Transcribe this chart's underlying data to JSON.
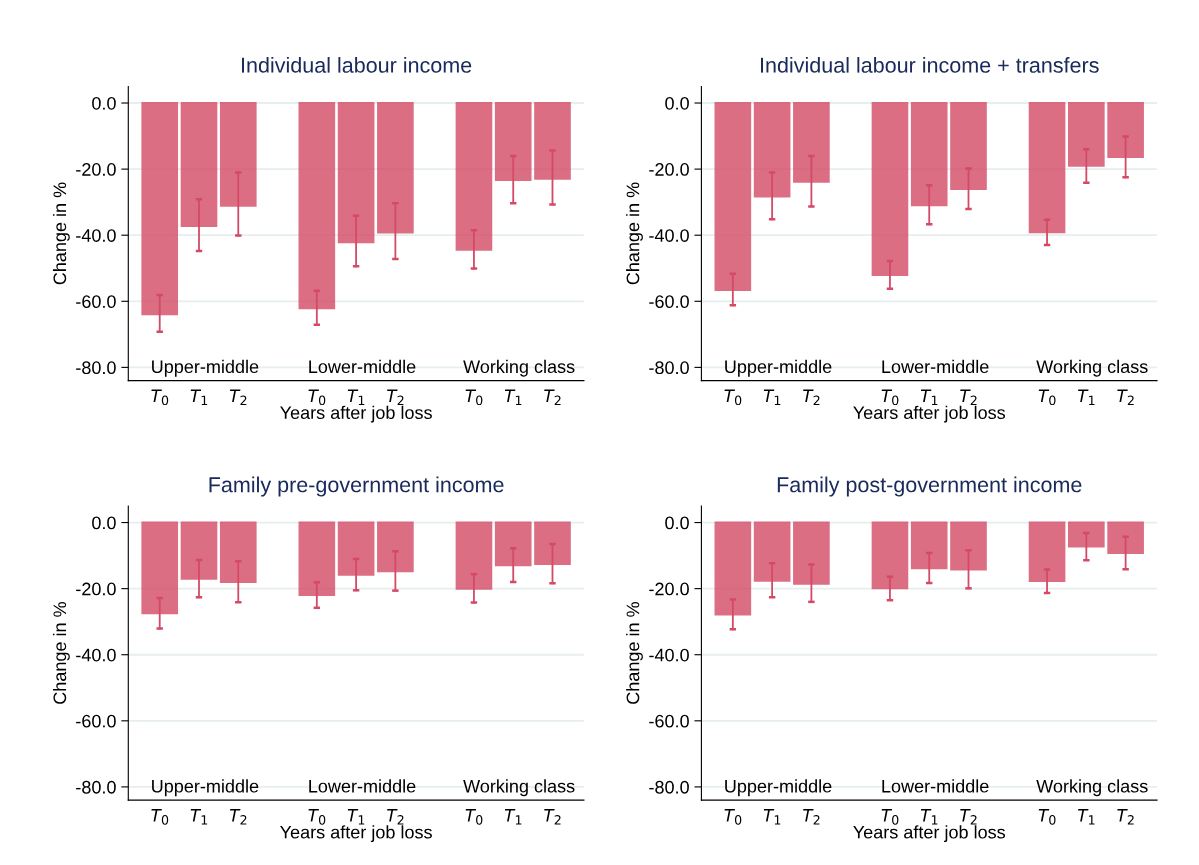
{
  "chart_data": [
    {
      "type": "bar",
      "title": "Individual labour income",
      "xlabel": "Years after job loss",
      "ylabel": "Change in %",
      "categories": [
        "T$_{0}$",
        "T$_{1}$",
        "T$_{2}$",
        null,
        "T$_{0}$",
        "T$_{1}$",
        "T$_{2}$",
        null,
        "T$_{0}$",
        "T$_{1}$",
        "T$_{2}$"
      ],
      "series": [
        {
          "color": "#d44a66",
          "values": [
            -63.9,
            -37.2,
            -31.1,
            null,
            -62.1,
            -42.1,
            -39.2,
            null,
            -44.4,
            -23.3,
            -22.9
          ],
          "errors": [
            [
              -69.2,
              -58.1
            ],
            [
              -44.8,
              -29.1
            ],
            [
              -40.1,
              -21.0
            ],
            null,
            [
              -67.1,
              -56.8
            ],
            [
              -49.4,
              -34.1
            ],
            [
              -47.2,
              -30.3
            ],
            null,
            [
              -50.1,
              -38.5
            ],
            [
              -30.3,
              -16.0
            ],
            [
              -30.7,
              -14.4
            ]
          ]
        }
      ],
      "annotations": [
        "Upper-middle",
        "Lower-middle",
        "Working class"
      ],
      "ylim": [
        -84,
        5
      ],
      "yticks": [
        {
          "value": 0,
          "label": "0.0"
        },
        {
          "value": -20,
          "label": "-20.0"
        },
        {
          "value": -40,
          "label": "-40.0"
        },
        {
          "value": -60,
          "label": "-60.0"
        },
        {
          "value": -80,
          "label": "-80.0"
        }
      ],
      "grid": "y"
    },
    {
      "type": "bar",
      "title": "Individual labour income + transfers",
      "xlabel": "Years after job loss",
      "ylabel": "Change in %",
      "categories": [
        "T$_{0}$",
        "T$_{1}$",
        "T$_{2}$",
        null,
        "T$_{0}$",
        "T$_{1}$",
        "T$_{2}$",
        null,
        "T$_{0}$",
        "T$_{1}$",
        "T$_{2}$"
      ],
      "series": [
        {
          "color": "#d44a66",
          "values": [
            -56.6,
            -28.3,
            -23.8,
            null,
            -52.0,
            -30.9,
            -26.0,
            null,
            -39.1,
            -19.0,
            -16.3
          ],
          "errors": [
            [
              -61.2,
              -51.7
            ],
            [
              -35.2,
              -21.0
            ],
            [
              -31.3,
              -16.0
            ],
            null,
            [
              -56.2,
              -47.8
            ],
            [
              -36.7,
              -24.9
            ],
            [
              -32.1,
              -19.8
            ],
            null,
            [
              -43.0,
              -35.3
            ],
            [
              -24.1,
              -14.0
            ],
            [
              -22.5,
              -10.1
            ]
          ]
        }
      ],
      "annotations": [
        "Upper-middle",
        "Lower-middle",
        "Working class"
      ],
      "ylim": [
        -84,
        5
      ],
      "yticks": [
        {
          "value": 0,
          "label": "0.0"
        },
        {
          "value": -20,
          "label": "-20.0"
        },
        {
          "value": -40,
          "label": "-40.0"
        },
        {
          "value": -60,
          "label": "-60.0"
        },
        {
          "value": -80,
          "label": "-80.0"
        }
      ],
      "grid": "y"
    },
    {
      "type": "bar",
      "title": "Family pre-government income",
      "xlabel": "Years after job loss",
      "ylabel": "Change in %",
      "categories": [
        "T$_{0}$",
        "T$_{1}$",
        "T$_{2}$",
        null,
        "T$_{0}$",
        "T$_{1}$",
        "T$_{2}$",
        null,
        "T$_{0}$",
        "T$_{1}$",
        "T$_{2}$"
      ],
      "series": [
        {
          "color": "#d44a66",
          "values": [
            -27.4,
            -17.0,
            -18.0,
            null,
            -21.9,
            -15.8,
            -14.7,
            null,
            -20.0,
            -12.9,
            -12.5
          ],
          "errors": [
            [
              -32.1,
              -22.8
            ],
            [
              -22.6,
              -11.3
            ],
            [
              -24.1,
              -11.7
            ],
            null,
            [
              -25.8,
              -18.1
            ],
            [
              -20.5,
              -11.0
            ],
            [
              -20.6,
              -8.7
            ],
            null,
            [
              -24.2,
              -15.6
            ],
            [
              -18.0,
              -7.8
            ],
            [
              -18.4,
              -6.5
            ]
          ]
        }
      ],
      "annotations": [
        "Upper-middle",
        "Lower-middle",
        "Working class"
      ],
      "ylim": [
        -84,
        5
      ],
      "yticks": [
        {
          "value": 0,
          "label": "0.0"
        },
        {
          "value": -20,
          "label": "-20.0"
        },
        {
          "value": -40,
          "label": "-40.0"
        },
        {
          "value": -60,
          "label": "-60.0"
        },
        {
          "value": -80,
          "label": "-80.0"
        }
      ],
      "grid": "y"
    },
    {
      "type": "bar",
      "title": "Family post-government income",
      "xlabel": "Years after job loss",
      "ylabel": "Change in %",
      "categories": [
        "T$_{0}$",
        "T$_{1}$",
        "T$_{2}$",
        null,
        "T$_{0}$",
        "T$_{1}$",
        "T$_{2}$",
        null,
        "T$_{0}$",
        "T$_{1}$",
        "T$_{2}$"
      ],
      "series": [
        {
          "color": "#d44a66",
          "values": [
            -27.8,
            -17.6,
            -18.5,
            null,
            -19.9,
            -13.8,
            -14.2,
            null,
            -17.7,
            -7.2,
            -9.2
          ],
          "errors": [
            [
              -32.3,
              -23.3
            ],
            [
              -22.6,
              -12.3
            ],
            [
              -24.0,
              -12.7
            ],
            null,
            [
              -23.5,
              -16.4
            ],
            [
              -18.3,
              -9.2
            ],
            [
              -19.9,
              -8.4
            ],
            null,
            [
              -21.3,
              -14.2
            ],
            [
              -11.4,
              -3.2
            ],
            [
              -14.1,
              -4.3
            ]
          ]
        }
      ],
      "annotations": [
        "Upper-middle",
        "Lower-middle",
        "Working class"
      ],
      "ylim": [
        -84,
        5
      ],
      "yticks": [
        {
          "value": 0,
          "label": "0.0"
        },
        {
          "value": -20,
          "label": "-20.0"
        },
        {
          "value": -40,
          "label": "-40.0"
        },
        {
          "value": -60,
          "label": "-60.0"
        },
        {
          "value": -80,
          "label": "-80.0"
        }
      ],
      "grid": "y"
    }
  ]
}
